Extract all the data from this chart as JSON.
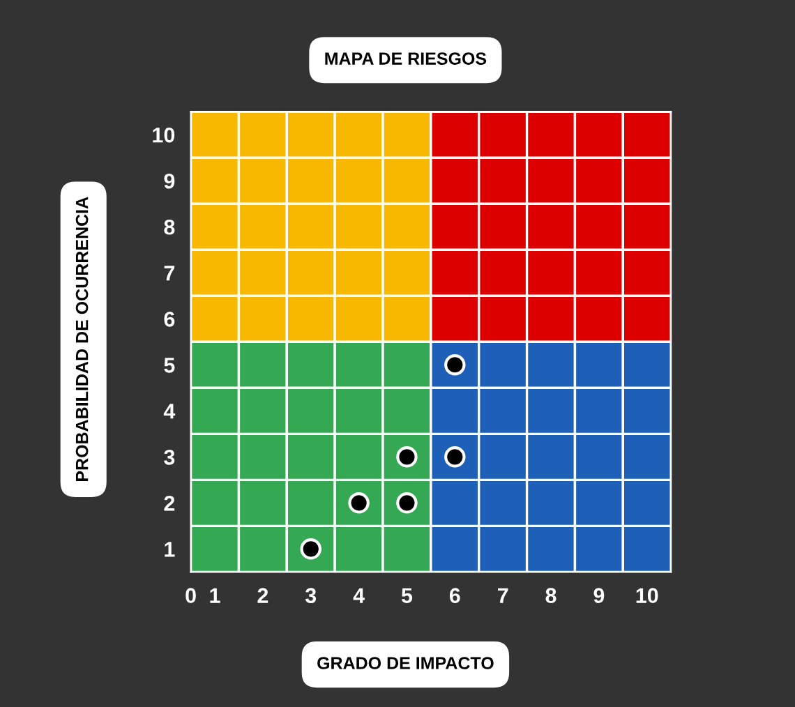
{
  "chart_data": {
    "type": "scatter",
    "title": "MAPA DE RIESGOS",
    "xlabel": "GRADO DE IMPACTO",
    "ylabel": "PROBABILIDAD DE OCURRENCIA",
    "xlim": [
      0.5,
      10.5
    ],
    "ylim": [
      0.5,
      10.5
    ],
    "xticks": [
      {
        "value": 0.5,
        "label": "0"
      },
      1,
      2,
      3,
      4,
      5,
      6,
      7,
      8,
      9,
      10
    ],
    "yticks": [
      1,
      2,
      3,
      4,
      5,
      6,
      7,
      8,
      9,
      10
    ],
    "stacked": true,
    "marker": "circle",
    "series": [
      {
        "type": "bar",
        "x": [
          1,
          2,
          3,
          4,
          5,
          6,
          7,
          8,
          9,
          10
        ],
        "base": [
          0.5,
          0.5,
          0.5,
          0.5,
          0.5,
          0.5,
          0.5,
          0.5,
          0.5,
          0.5
        ],
        "values": [
          1,
          1,
          1,
          1,
          1,
          1,
          1,
          1,
          1,
          1
        ],
        "colors": [
          "#34a853",
          "#34a853",
          "#34a853",
          "#34a853",
          "#34a853",
          "#1e5fb8",
          "#1e5fb8",
          "#1e5fb8",
          "#1e5fb8",
          "#1e5fb8"
        ]
      },
      {
        "type": "bar",
        "x": [
          1,
          2,
          3,
          4,
          5,
          6,
          7,
          8,
          9,
          10
        ],
        "values": [
          1,
          1,
          1,
          1,
          1,
          1,
          1,
          1,
          1,
          1
        ],
        "colors": [
          "#34a853",
          "#34a853",
          "#34a853",
          "#34a853",
          "#34a853",
          "#1e5fb8",
          "#1e5fb8",
          "#1e5fb8",
          "#1e5fb8",
          "#1e5fb8"
        ]
      },
      {
        "type": "bar",
        "x": [
          1,
          2,
          3,
          4,
          5,
          6,
          7,
          8,
          9,
          10
        ],
        "values": [
          1,
          1,
          1,
          1,
          1,
          1,
          1,
          1,
          1,
          1
        ],
        "colors": [
          "#34a853",
          "#34a853",
          "#34a853",
          "#34a853",
          "#34a853",
          "#1e5fb8",
          "#1e5fb8",
          "#1e5fb8",
          "#1e5fb8",
          "#1e5fb8"
        ]
      },
      {
        "type": "bar",
        "x": [
          1,
          2,
          3,
          4,
          5,
          6,
          7,
          8,
          9,
          10
        ],
        "values": [
          1,
          1,
          1,
          1,
          1,
          1,
          1,
          1,
          1,
          1
        ],
        "colors": [
          "#34a853",
          "#34a853",
          "#34a853",
          "#34a853",
          "#34a853",
          "#1e5fb8",
          "#1e5fb8",
          "#1e5fb8",
          "#1e5fb8",
          "#1e5fb8"
        ]
      },
      {
        "type": "bar",
        "x": [
          1,
          2,
          3,
          4,
          5,
          6,
          7,
          8,
          9,
          10
        ],
        "values": [
          1,
          1,
          1,
          1,
          1,
          1,
          1,
          1,
          1,
          1
        ],
        "colors": [
          "#34a853",
          "#34a853",
          "#34a853",
          "#34a853",
          "#34a853",
          "#1e5fb8",
          "#1e5fb8",
          "#1e5fb8",
          "#1e5fb8",
          "#1e5fb8"
        ]
      },
      {
        "type": "bar",
        "x": [
          1,
          2,
          3,
          4,
          5,
          6,
          7,
          8,
          9,
          10
        ],
        "values": [
          1,
          1,
          1,
          1,
          1,
          1,
          1,
          1,
          1,
          1
        ],
        "colors": [
          "#f9b800",
          "#f9b800",
          "#f9b800",
          "#f9b800",
          "#f9b800",
          "#dd0000",
          "#dd0000",
          "#dd0000",
          "#dd0000",
          "#dd0000"
        ]
      },
      {
        "type": "bar",
        "x": [
          1,
          2,
          3,
          4,
          5,
          6,
          7,
          8,
          9,
          10
        ],
        "values": [
          1,
          1,
          1,
          1,
          1,
          1,
          1,
          1,
          1,
          1
        ],
        "colors": [
          "#f9b800",
          "#f9b800",
          "#f9b800",
          "#f9b800",
          "#f9b800",
          "#dd0000",
          "#dd0000",
          "#dd0000",
          "#dd0000",
          "#dd0000"
        ]
      },
      {
        "type": "bar",
        "x": [
          1,
          2,
          3,
          4,
          5,
          6,
          7,
          8,
          9,
          10
        ],
        "values": [
          1,
          1,
          1,
          1,
          1,
          1,
          1,
          1,
          1,
          1
        ],
        "colors": [
          "#f9b800",
          "#f9b800",
          "#f9b800",
          "#f9b800",
          "#f9b800",
          "#dd0000",
          "#dd0000",
          "#dd0000",
          "#dd0000",
          "#dd0000"
        ]
      },
      {
        "type": "bar",
        "x": [
          1,
          2,
          3,
          4,
          5,
          6,
          7,
          8,
          9,
          10
        ],
        "values": [
          1,
          1,
          1,
          1,
          1,
          1,
          1,
          1,
          1,
          1
        ],
        "colors": [
          "#f9b800",
          "#f9b800",
          "#f9b800",
          "#f9b800",
          "#f9b800",
          "#dd0000",
          "#dd0000",
          "#dd0000",
          "#dd0000",
          "#dd0000"
        ]
      },
      {
        "type": "bar",
        "x": [
          1,
          2,
          3,
          4,
          5,
          6,
          7,
          8,
          9,
          10
        ],
        "values": [
          1,
          1,
          1,
          1,
          1,
          1,
          1,
          1,
          1,
          1
        ],
        "colors": [
          "#f9b800",
          "#f9b800",
          "#f9b800",
          "#f9b800",
          "#f9b800",
          "#dd0000",
          "#dd0000",
          "#dd0000",
          "#dd0000",
          "#dd0000"
        ]
      },
      {
        "x": [
          3,
          4,
          5,
          5,
          6,
          6
        ],
        "values": [
          1,
          2,
          2,
          3,
          3,
          5
        ],
        "color": "#000000"
      }
    ]
  }
}
